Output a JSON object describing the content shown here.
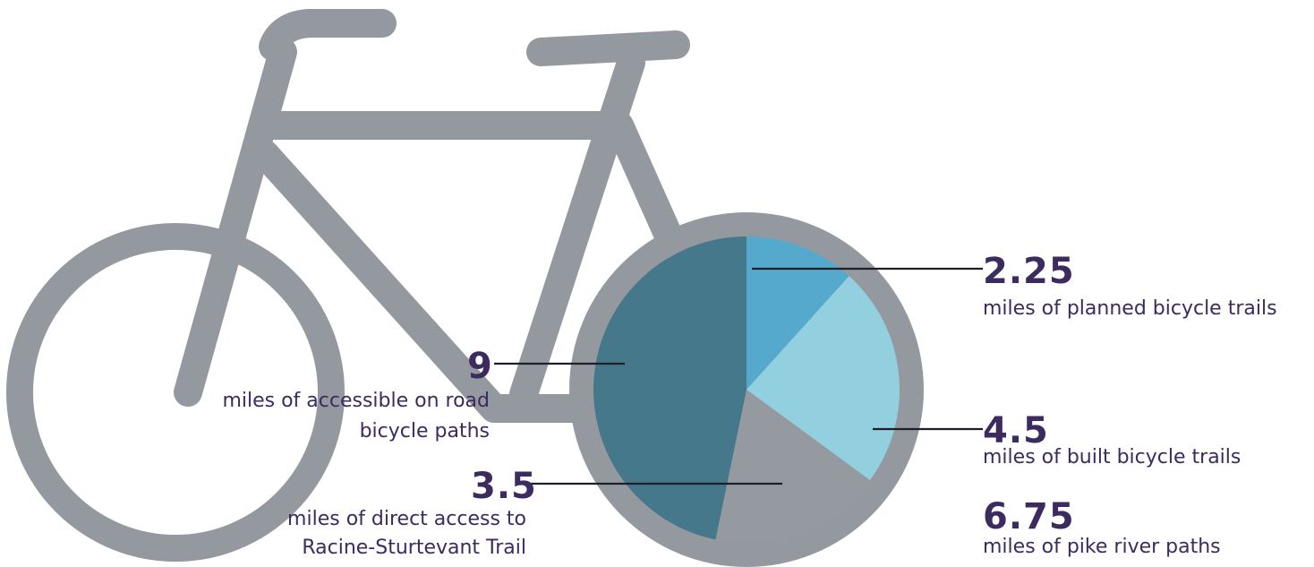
{
  "colors": {
    "bike": "#9499a0",
    "text": "#3b2b5e",
    "leader": "#1f1f2a",
    "wheel_bg": "#ffffff"
  },
  "icon": "bicycle-icon",
  "chart_data": {
    "type": "pie",
    "slices": [
      {
        "value": 2.25,
        "label": "miles of planned bicycle trails",
        "color": "#55a9cc"
      },
      {
        "value": 4.5,
        "label": "miles of built bicycle trails",
        "color": "#92cfdf"
      },
      {
        "value": 3.5,
        "label": "miles of direct access to Racine-Sturtevant Trail",
        "color": "#959aa0"
      },
      {
        "value": 9,
        "label": "miles of  accessible on road bicycle paths",
        "color": "#46788b"
      }
    ],
    "annotations": [
      {
        "value": "2.25",
        "text": "miles of planned bicycle trails"
      },
      {
        "value": "4.5",
        "text": "miles of built bicycle trails"
      },
      {
        "value": "6.75",
        "text": "miles of pike river paths"
      },
      {
        "value": "9",
        "text_line1": "miles of  accessible on road",
        "text_line2": "bicycle paths"
      },
      {
        "value": "3.5",
        "text_line1": "miles of direct access to",
        "text_line2": "Racine-Sturtevant Trail"
      }
    ]
  }
}
